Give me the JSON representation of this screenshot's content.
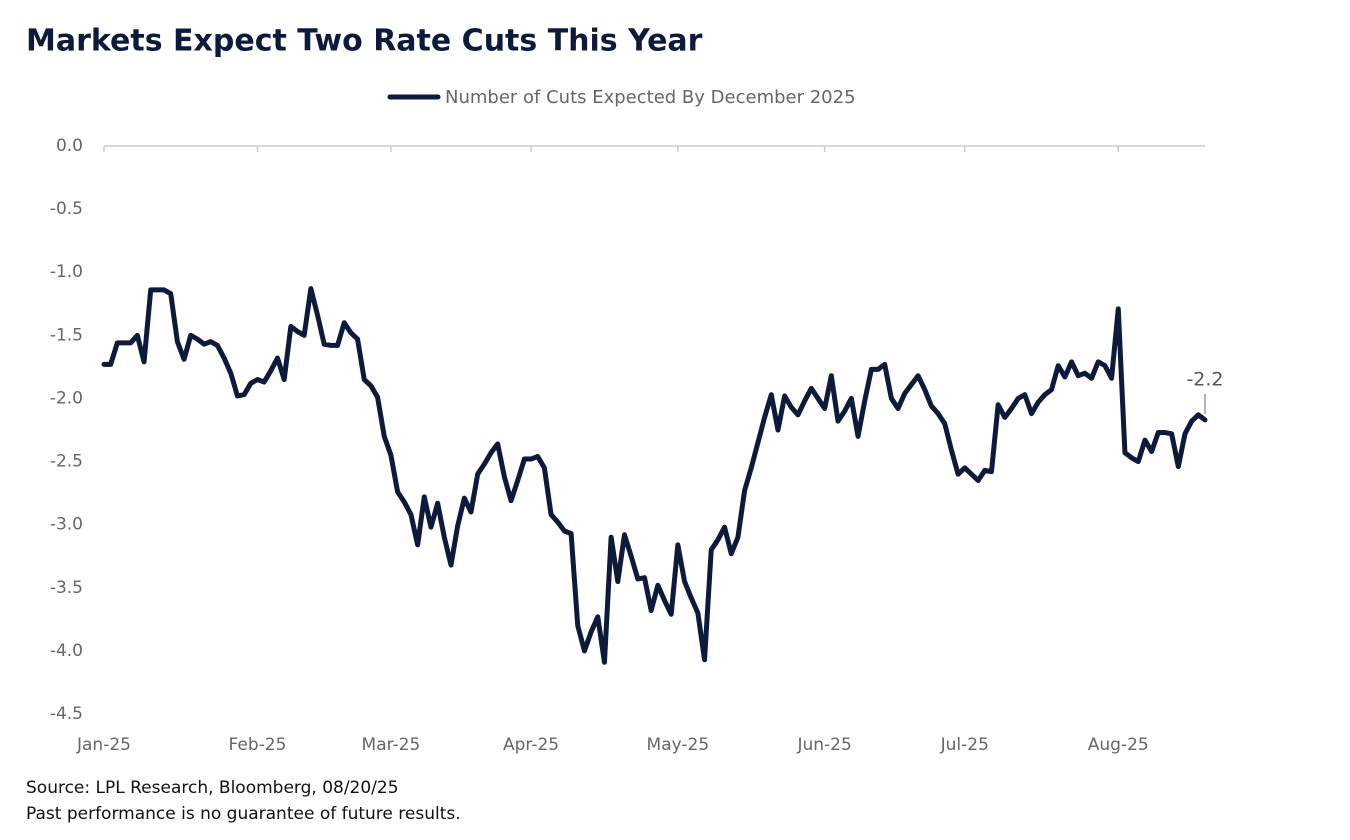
{
  "chart_data": {
    "type": "line",
    "title": "Markets Expect Two Rate Cuts This Year",
    "source": "Source: LPL Research, Bloomberg, 08/20/25",
    "disclaimer": "Past performance is no guarantee of future results.",
    "categories": [
      "Jan-25",
      null,
      null,
      null,
      null,
      null,
      null,
      null,
      null,
      null,
      null,
      null,
      null,
      null,
      null,
      null,
      null,
      null,
      null,
      null,
      null,
      null,
      null,
      "Feb-25",
      null,
      null,
      null,
      null,
      null,
      null,
      null,
      null,
      null,
      null,
      null,
      null,
      null,
      null,
      null,
      null,
      null,
      null,
      null,
      "Mar-25",
      null,
      null,
      null,
      null,
      null,
      null,
      null,
      null,
      null,
      null,
      null,
      null,
      null,
      null,
      null,
      null,
      null,
      null,
      null,
      null,
      "Apr-25",
      null,
      null,
      null,
      null,
      null,
      null,
      null,
      null,
      null,
      null,
      null,
      null,
      null,
      null,
      null,
      null,
      null,
      null,
      null,
      null,
      null,
      "May-25",
      null,
      null,
      null,
      null,
      null,
      null,
      null,
      null,
      null,
      null,
      null,
      null,
      null,
      null,
      null,
      null,
      null,
      null,
      null,
      null,
      null,
      "Jun-25",
      null,
      null,
      null,
      null,
      null,
      null,
      null,
      null,
      null,
      null,
      null,
      null,
      null,
      null,
      null,
      null,
      null,
      null,
      null,
      null,
      "Jul-25",
      null,
      null,
      null,
      null,
      null,
      null,
      null,
      null,
      null,
      null,
      null,
      null,
      null,
      null,
      null,
      null,
      null,
      null,
      null,
      null,
      null,
      null,
      "Aug-25",
      null,
      null,
      null,
      null,
      null,
      null,
      null,
      null,
      null,
      null,
      null,
      null,
      null
    ],
    "series": [
      {
        "name": "Number of Cuts Expected By December 2025",
        "color": "#0e1a3c",
        "values": [
          -1.73,
          -1.73,
          -1.56,
          -1.56,
          -1.56,
          -1.5,
          -1.71,
          -1.14,
          -1.14,
          -1.14,
          -1.17,
          -1.55,
          -1.69,
          -1.5,
          -1.53,
          -1.57,
          -1.55,
          -1.58,
          -1.68,
          -1.8,
          -1.98,
          -1.97,
          -1.88,
          -1.85,
          -1.87,
          -1.78,
          -1.68,
          -1.85,
          -1.43,
          -1.47,
          -1.5,
          -1.13,
          -1.34,
          -1.57,
          -1.58,
          -1.58,
          -1.4,
          -1.48,
          -1.53,
          -1.85,
          -1.9,
          -1.99,
          -2.3,
          -2.45,
          -2.74,
          -2.82,
          -2.92,
          -3.16,
          -2.78,
          -3.02,
          -2.83,
          -3.1,
          -3.32,
          -3.01,
          -2.79,
          -2.9,
          -2.6,
          -2.52,
          -2.43,
          -2.36,
          -2.62,
          -2.81,
          -2.65,
          -2.48,
          -2.48,
          -2.46,
          -2.55,
          -2.92,
          -2.98,
          -3.05,
          -3.07,
          -3.8,
          -4.0,
          -3.85,
          -3.73,
          -4.09,
          -3.1,
          -3.45,
          -3.08,
          -3.25,
          -3.43,
          -3.42,
          -3.68,
          -3.48,
          -3.6,
          -3.71,
          -3.16,
          -3.45,
          -3.58,
          -3.7,
          -4.07,
          -3.2,
          -3.12,
          -3.02,
          -3.23,
          -3.1,
          -2.73,
          -2.55,
          -2.35,
          -2.15,
          -1.97,
          -2.25,
          -1.98,
          -2.07,
          -2.13,
          -2.02,
          -1.92,
          -2.0,
          -2.08,
          -1.82,
          -2.18,
          -2.1,
          -2.0,
          -2.3,
          -2.02,
          -1.77,
          -1.77,
          -1.73,
          -2.0,
          -2.08,
          -1.96,
          -1.89,
          -1.82,
          -1.93,
          -2.06,
          -2.12,
          -2.2,
          -2.41,
          -2.6,
          -2.55,
          -2.6,
          -2.65,
          -2.57,
          -2.58,
          -2.05,
          -2.15,
          -2.08,
          -2.0,
          -1.97,
          -2.12,
          -2.03,
          -1.97,
          -1.93,
          -1.74,
          -1.83,
          -1.71,
          -1.82,
          -1.8,
          -1.84,
          -1.71,
          -1.74,
          -1.84,
          -1.29,
          -2.43,
          -2.47,
          -2.5,
          -2.33,
          -2.42,
          -2.27,
          -2.27,
          -2.28,
          -2.54,
          -2.28,
          -2.18,
          -2.13,
          -2.17
        ],
        "value_labels": [
          null,
          null,
          null,
          null,
          null,
          null,
          null,
          null,
          null,
          null,
          null,
          null,
          null,
          null,
          null,
          null,
          null,
          null,
          null,
          null,
          null,
          null,
          null,
          null,
          null,
          null,
          null,
          null,
          null,
          null,
          null,
          null,
          null,
          null,
          null,
          null,
          null,
          null,
          null,
          null,
          null,
          null,
          null,
          null,
          null,
          null,
          null,
          null,
          null,
          null,
          null,
          null,
          null,
          null,
          null,
          null,
          null,
          null,
          null,
          null,
          null,
          null,
          null,
          null,
          null,
          null,
          null,
          null,
          null,
          null,
          null,
          null,
          null,
          null,
          null,
          null,
          null,
          null,
          null,
          null,
          null,
          null,
          null,
          null,
          null,
          null,
          null,
          null,
          null,
          null,
          null,
          null,
          null,
          null,
          null,
          null,
          null,
          null,
          null,
          null,
          null,
          null,
          null,
          null,
          null,
          null,
          null,
          null,
          null,
          null,
          null,
          null,
          null,
          null,
          null,
          null,
          null,
          null,
          null,
          null,
          null,
          null,
          null,
          null,
          null,
          null,
          null,
          null,
          null,
          null,
          null,
          null,
          null,
          null,
          null,
          null,
          null,
          null,
          null,
          null,
          null,
          null,
          null,
          null,
          null,
          null,
          null,
          null,
          null,
          null,
          null,
          null,
          null,
          null,
          null,
          null,
          null,
          null,
          null,
          null,
          null,
          null,
          null,
          null,
          null,
          "-2.2"
        ]
      }
    ],
    "ylim": [
      -4.5,
      0
    ],
    "yticks": [
      {
        "value": 0,
        "label": "0.0"
      },
      -0.5,
      {
        "value": -1,
        "label": "-1.0"
      },
      -1.5,
      {
        "value": -2,
        "label": "-2.0"
      },
      -2.5,
      {
        "value": -3,
        "label": "-3.0"
      },
      -3.5,
      {
        "value": -4,
        "label": "-4.0"
      },
      -4.5
    ],
    "grid": false,
    "legend": "top"
  }
}
